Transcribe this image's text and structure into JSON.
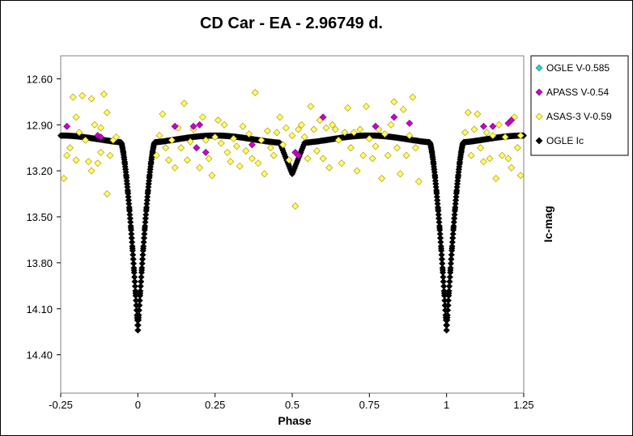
{
  "chart_data": {
    "type": "scatter",
    "title": "CD Car - EA - 2.96749  d.",
    "xlabel": "Phase",
    "ylabel": "Ic-mag",
    "xlim": [
      -0.25,
      1.25
    ],
    "ylim": [
      12.45,
      14.65
    ],
    "y_inverted": true,
    "x_ticks": [
      "-0.25",
      "0",
      "0.25",
      "0.5",
      "0.75",
      "1",
      "1.25"
    ],
    "x_tick_values": [
      -0.25,
      0,
      0.25,
      0.5,
      0.75,
      1,
      1.25
    ],
    "y_ticks": [
      "12.60",
      "12.90",
      "13.20",
      "13.50",
      "13.80",
      "14.10",
      "14.40"
    ],
    "y_tick_values": [
      12.6,
      12.9,
      13.2,
      13.5,
      13.8,
      14.1,
      14.4
    ],
    "grid": false,
    "legend_position": "right",
    "series": [
      {
        "name": "OGLE V-0.585",
        "color": "#33cccc",
        "marker": "diamond",
        "points": []
      },
      {
        "name": "APASS V-0.54",
        "color": "#cc00cc",
        "marker": "diamond",
        "points": [
          [
            -0.23,
            12.91
          ],
          [
            -0.13,
            12.97
          ],
          [
            -0.12,
            12.98
          ],
          [
            0.12,
            12.91
          ],
          [
            0.18,
            12.91
          ],
          [
            0.2,
            12.9
          ],
          [
            0.19,
            13.05
          ],
          [
            0.22,
            13.08
          ],
          [
            0.37,
            13.03
          ],
          [
            0.51,
            13.08
          ],
          [
            0.52,
            13.1
          ],
          [
            0.6,
            12.85
          ],
          [
            0.77,
            12.91
          ],
          [
            0.83,
            12.85
          ],
          [
            0.88,
            12.89
          ],
          [
            1.12,
            12.91
          ],
          [
            1.15,
            12.91
          ],
          [
            1.2,
            12.89
          ],
          [
            1.21,
            12.87
          ]
        ]
      },
      {
        "name": "ASAS-3 V-0.59",
        "color": "#ffff66",
        "marker": "diamond",
        "points": [
          [
            -0.24,
            13.25
          ],
          [
            -0.23,
            13.1
          ],
          [
            -0.22,
            13.05
          ],
          [
            -0.21,
            12.72
          ],
          [
            -0.2,
            12.85
          ],
          [
            -0.2,
            13.13
          ],
          [
            -0.19,
            12.95
          ],
          [
            -0.18,
            12.71
          ],
          [
            -0.17,
            13.0
          ],
          [
            -0.16,
            13.14
          ],
          [
            -0.15,
            12.73
          ],
          [
            -0.15,
            13.2
          ],
          [
            -0.14,
            12.9
          ],
          [
            -0.13,
            13.15
          ],
          [
            -0.12,
            12.92
          ],
          [
            -0.12,
            13.08
          ],
          [
            -0.11,
            12.7
          ],
          [
            -0.1,
            12.82
          ],
          [
            -0.1,
            13.35
          ],
          [
            -0.09,
            13.1
          ],
          [
            -0.08,
            13.0
          ],
          [
            -0.07,
            12.98
          ],
          [
            0.06,
            13.1
          ],
          [
            0.07,
            12.97
          ],
          [
            0.08,
            12.83
          ],
          [
            0.09,
            13.05
          ],
          [
            0.1,
            13.13
          ],
          [
            0.11,
            13.0
          ],
          [
            0.12,
            13.18
          ],
          [
            0.13,
            12.92
          ],
          [
            0.14,
            13.05
          ],
          [
            0.15,
            12.76
          ],
          [
            0.16,
            13.13
          ],
          [
            0.17,
            13.01
          ],
          [
            0.18,
            12.93
          ],
          [
            0.19,
            13.05
          ],
          [
            0.2,
            13.18
          ],
          [
            0.21,
            12.85
          ],
          [
            0.22,
            13.0
          ],
          [
            0.23,
            13.12
          ],
          [
            0.24,
            13.23
          ],
          [
            0.25,
            12.98
          ],
          [
            0.26,
            12.87
          ],
          [
            0.27,
            13.02
          ],
          [
            0.28,
            12.9
          ],
          [
            0.29,
            13.08
          ],
          [
            0.3,
            13.14
          ],
          [
            0.31,
            12.99
          ],
          [
            0.32,
            13.04
          ],
          [
            0.33,
            13.17
          ],
          [
            0.34,
            12.91
          ],
          [
            0.35,
            13.07
          ],
          [
            0.36,
            12.96
          ],
          [
            0.37,
            13.12
          ],
          [
            0.38,
            12.69
          ],
          [
            0.39,
            13.15
          ],
          [
            0.4,
            13.0
          ],
          [
            0.41,
            13.22
          ],
          [
            0.42,
            12.94
          ],
          [
            0.43,
            13.05
          ],
          [
            0.44,
            13.1
          ],
          [
            0.45,
            12.95
          ],
          [
            0.46,
            12.85
          ],
          [
            0.47,
            13.03
          ],
          [
            0.48,
            12.92
          ],
          [
            0.49,
            13.13
          ],
          [
            0.5,
            12.97
          ],
          [
            0.51,
            13.43
          ],
          [
            0.52,
            12.93
          ],
          [
            0.53,
            12.9
          ],
          [
            0.54,
            12.98
          ],
          [
            0.55,
            13.12
          ],
          [
            0.56,
            12.78
          ],
          [
            0.57,
            12.93
          ],
          [
            0.58,
            13.07
          ],
          [
            0.59,
            12.87
          ],
          [
            0.6,
            13.12
          ],
          [
            0.61,
            12.92
          ],
          [
            0.62,
            13.18
          ],
          [
            0.63,
            12.9
          ],
          [
            0.64,
            12.93
          ],
          [
            0.65,
            13.0
          ],
          [
            0.66,
            13.15
          ],
          [
            0.67,
            12.95
          ],
          [
            0.68,
            12.79
          ],
          [
            0.69,
            13.05
          ],
          [
            0.7,
            12.95
          ],
          [
            0.71,
            13.2
          ],
          [
            0.72,
            12.93
          ],
          [
            0.73,
            13.1
          ],
          [
            0.74,
            12.78
          ],
          [
            0.75,
            12.99
          ],
          [
            0.76,
            13.12
          ],
          [
            0.77,
            13.04
          ],
          [
            0.78,
            12.93
          ],
          [
            0.79,
            13.25
          ],
          [
            0.8,
            12.96
          ],
          [
            0.81,
            13.1
          ],
          [
            0.82,
            12.9
          ],
          [
            0.83,
            12.75
          ],
          [
            0.84,
            13.05
          ],
          [
            0.85,
            13.22
          ],
          [
            0.86,
            12.8
          ],
          [
            0.87,
            13.1
          ],
          [
            0.88,
            12.97
          ],
          [
            0.89,
            12.72
          ],
          [
            0.9,
            13.05
          ],
          [
            0.91,
            13.27
          ],
          [
            1.06,
            12.95
          ],
          [
            1.07,
            12.82
          ],
          [
            1.08,
            13.1
          ],
          [
            1.09,
            12.93
          ],
          [
            1.1,
            12.83
          ],
          [
            1.11,
            13.05
          ],
          [
            1.12,
            13.14
          ],
          [
            1.13,
            12.95
          ],
          [
            1.14,
            13.12
          ],
          [
            1.15,
            12.97
          ],
          [
            1.16,
            13.25
          ],
          [
            1.17,
            12.9
          ],
          [
            1.18,
            13.1
          ],
          [
            1.19,
            12.98
          ],
          [
            1.2,
            13.12
          ],
          [
            1.21,
            13.18
          ],
          [
            1.22,
            12.85
          ],
          [
            1.23,
            13.05
          ],
          [
            1.24,
            13.23
          ],
          [
            1.24,
            12.97
          ]
        ]
      },
      {
        "name": "OGLE Ic",
        "color": "#000000",
        "marker": "diamond",
        "curve": {
          "base": 13.02,
          "max_bright_shift": 0.05,
          "primary": {
            "phase": 0.0,
            "depth": 1.22,
            "width": 0.055
          },
          "secondary": {
            "phase": 0.5,
            "depth": 0.2,
            "width": 0.04
          }
        }
      }
    ]
  }
}
